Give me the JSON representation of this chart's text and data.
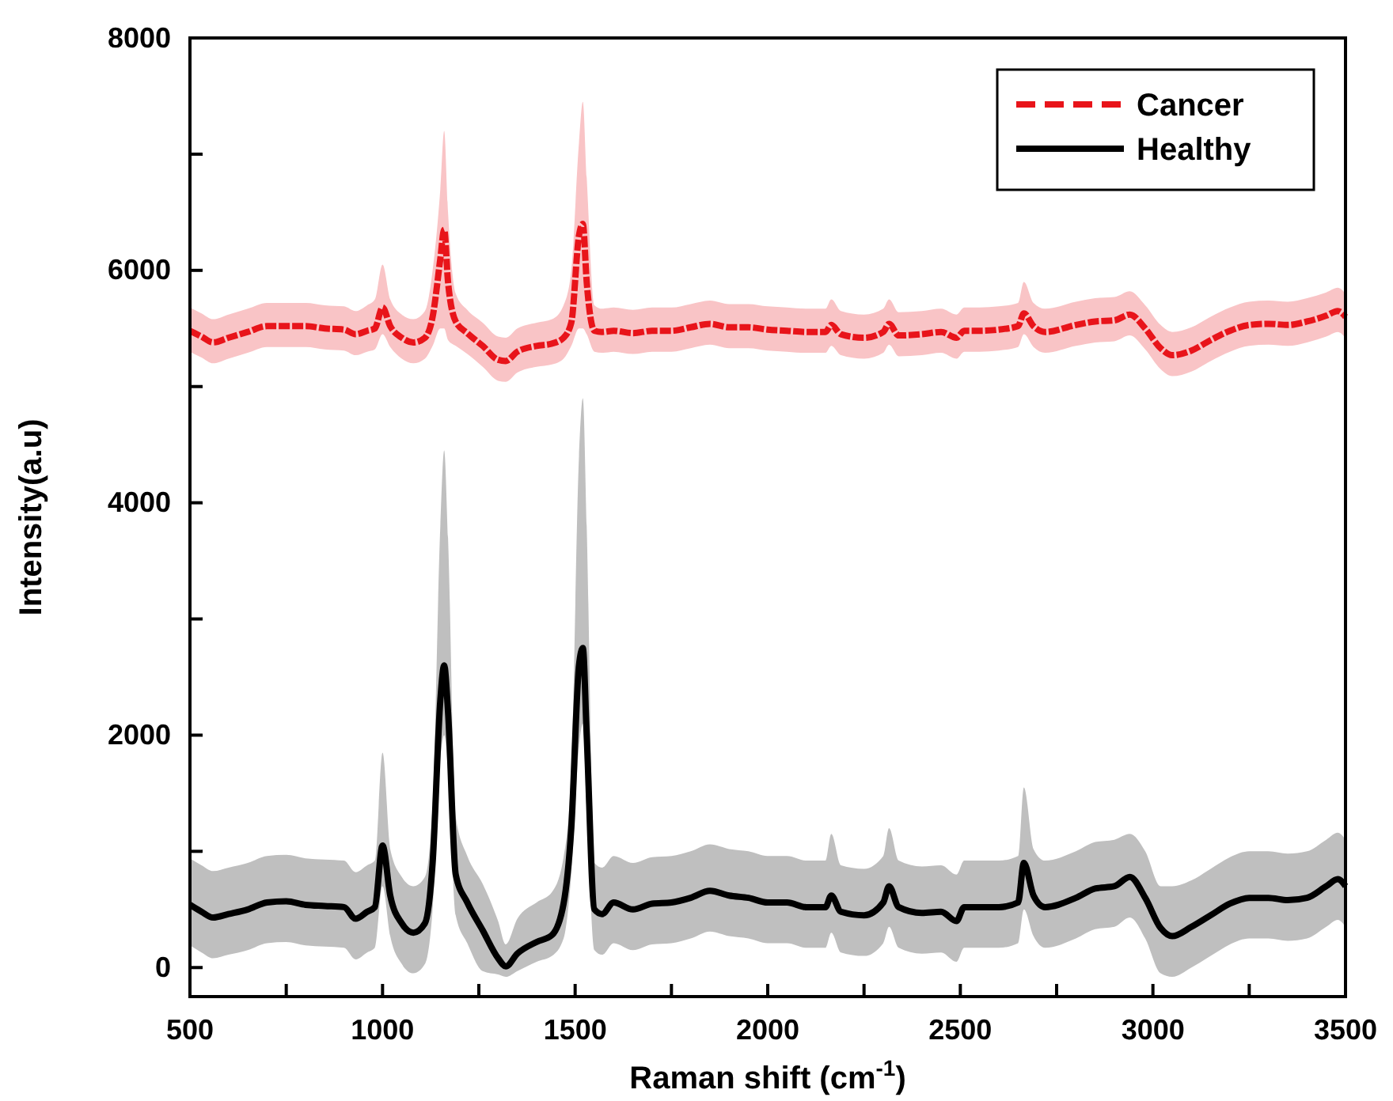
{
  "chart_data": {
    "type": "line",
    "xlabel": "Raman shift (cm$^{-1}$)",
    "ylabel": "Intensity(a.u)",
    "x": [
      500,
      530,
      560,
      600,
      650,
      700,
      750,
      800,
      850,
      900,
      930,
      960,
      980,
      1000,
      1020,
      1050,
      1080,
      1110,
      1130,
      1150,
      1160,
      1170,
      1190,
      1220,
      1260,
      1300,
      1320,
      1350,
      1400,
      1440,
      1470,
      1490,
      1510,
      1520,
      1530,
      1550,
      1570,
      1600,
      1650,
      1700,
      1750,
      1800,
      1850,
      1900,
      1950,
      2000,
      2050,
      2100,
      2150,
      2165,
      2190,
      2250,
      2300,
      2315,
      2340,
      2400,
      2450,
      2490,
      2510,
      2550,
      2600,
      2650,
      2665,
      2690,
      2720,
      2800,
      2850,
      2900,
      2940,
      2980,
      3020,
      3050,
      3100,
      3150,
      3200,
      3250,
      3300,
      3350,
      3400,
      3450,
      3480,
      3500
    ],
    "xlim": [
      500,
      3500
    ],
    "xticks": [
      500,
      {
        "value": 750,
        "label": null
      },
      1000,
      {
        "value": 1250,
        "label": null
      },
      1500,
      {
        "value": 1750,
        "label": null
      },
      2000,
      {
        "value": 2250,
        "label": null
      },
      2500,
      {
        "value": 2750,
        "label": null
      },
      3000,
      {
        "value": 3250,
        "label": null
      },
      3500
    ],
    "ylim": [
      -250,
      8000
    ],
    "yticks": [
      0,
      {
        "value": 1000,
        "label": null
      },
      2000,
      {
        "value": 3000,
        "label": null
      },
      4000,
      {
        "value": 5000,
        "label": null
      },
      6000,
      {
        "value": 7000,
        "label": null
      },
      8000
    ],
    "legend": "top right",
    "series": [
      {
        "name": "Cancer",
        "color": "#e8141a",
        "line_style": "dashed",
        "values": [
          5480,
          5430,
          5380,
          5420,
          5470,
          5520,
          5520,
          5520,
          5500,
          5490,
          5450,
          5480,
          5500,
          5680,
          5520,
          5420,
          5380,
          5420,
          5600,
          6100,
          6350,
          5900,
          5560,
          5460,
          5350,
          5230,
          5220,
          5300,
          5350,
          5370,
          5420,
          5550,
          6300,
          6400,
          5900,
          5480,
          5470,
          5480,
          5460,
          5480,
          5480,
          5510,
          5540,
          5510,
          5510,
          5490,
          5480,
          5470,
          5470,
          5530,
          5450,
          5420,
          5470,
          5540,
          5440,
          5450,
          5470,
          5420,
          5480,
          5480,
          5490,
          5520,
          5630,
          5520,
          5470,
          5530,
          5560,
          5570,
          5620,
          5500,
          5330,
          5270,
          5310,
          5400,
          5480,
          5530,
          5540,
          5530,
          5560,
          5610,
          5650,
          5600
        ],
        "upper": [
          5680,
          5630,
          5580,
          5620,
          5670,
          5720,
          5720,
          5720,
          5700,
          5690,
          5650,
          5700,
          5750,
          6050,
          5750,
          5620,
          5580,
          5650,
          6000,
          6700,
          7200,
          6500,
          5800,
          5660,
          5550,
          5430,
          5420,
          5500,
          5550,
          5580,
          5700,
          6000,
          7100,
          7450,
          6800,
          5700,
          5670,
          5680,
          5660,
          5680,
          5680,
          5710,
          5740,
          5710,
          5710,
          5690,
          5680,
          5670,
          5670,
          5750,
          5650,
          5620,
          5670,
          5750,
          5640,
          5650,
          5670,
          5620,
          5680,
          5680,
          5690,
          5720,
          5900,
          5720,
          5670,
          5730,
          5760,
          5770,
          5820,
          5700,
          5530,
          5470,
          5510,
          5600,
          5680,
          5730,
          5740,
          5730,
          5760,
          5810,
          5850,
          5800
        ],
        "lower": [
          5300,
          5250,
          5200,
          5240,
          5290,
          5340,
          5340,
          5340,
          5320,
          5310,
          5270,
          5300,
          5320,
          5450,
          5340,
          5240,
          5200,
          5240,
          5350,
          5500,
          5500,
          5400,
          5350,
          5280,
          5170,
          5050,
          5040,
          5120,
          5170,
          5190,
          5240,
          5350,
          5500,
          5500,
          5450,
          5300,
          5290,
          5300,
          5280,
          5300,
          5300,
          5330,
          5360,
          5330,
          5330,
          5310,
          5300,
          5290,
          5290,
          5350,
          5270,
          5240,
          5290,
          5360,
          5260,
          5270,
          5290,
          5240,
          5300,
          5300,
          5310,
          5340,
          5450,
          5340,
          5290,
          5350,
          5380,
          5390,
          5440,
          5320,
          5150,
          5090,
          5130,
          5220,
          5300,
          5350,
          5360,
          5350,
          5380,
          5430,
          5470,
          5420
        ]
      },
      {
        "name": "Healthy",
        "color": "#000000",
        "line_style": "solid",
        "values": [
          540,
          480,
          430,
          460,
          500,
          560,
          570,
          540,
          530,
          520,
          420,
          480,
          520,
          1050,
          620,
          380,
          300,
          380,
          900,
          2300,
          2600,
          2200,
          800,
          560,
          320,
          80,
          10,
          120,
          220,
          280,
          550,
          1200,
          2600,
          2750,
          2000,
          500,
          460,
          560,
          500,
          550,
          560,
          600,
          660,
          620,
          600,
          560,
          560,
          520,
          520,
          620,
          480,
          450,
          560,
          700,
          520,
          470,
          480,
          400,
          520,
          520,
          520,
          560,
          900,
          620,
          520,
          600,
          680,
          700,
          780,
          600,
          340,
          270,
          350,
          450,
          550,
          600,
          600,
          580,
          600,
          700,
          760,
          700
        ],
        "upper": [
          940,
          880,
          830,
          860,
          900,
          960,
          970,
          940,
          930,
          920,
          820,
          880,
          920,
          1850,
          1020,
          780,
          700,
          780,
          1400,
          3800,
          4450,
          3700,
          1300,
          960,
          720,
          400,
          200,
          420,
          560,
          650,
          950,
          1700,
          4400,
          4900,
          3800,
          900,
          860,
          960,
          900,
          950,
          960,
          1000,
          1060,
          1020,
          1000,
          960,
          960,
          920,
          920,
          1150,
          880,
          850,
          960,
          1200,
          920,
          870,
          880,
          800,
          920,
          920,
          920,
          960,
          1550,
          1020,
          920,
          1000,
          1080,
          1100,
          1150,
          1000,
          700,
          700,
          750,
          850,
          950,
          1000,
          1000,
          980,
          1000,
          1100,
          1160,
          1100
        ],
        "lower": [
          190,
          130,
          80,
          110,
          150,
          210,
          220,
          190,
          180,
          170,
          70,
          130,
          170,
          700,
          270,
          30,
          -50,
          30,
          500,
          1800,
          2000,
          1700,
          450,
          210,
          -30,
          -60,
          -80,
          -30,
          50,
          100,
          250,
          800,
          1900,
          2100,
          1400,
          150,
          110,
          210,
          150,
          200,
          210,
          250,
          310,
          270,
          250,
          210,
          210,
          170,
          170,
          300,
          130,
          100,
          210,
          350,
          170,
          120,
          130,
          50,
          170,
          170,
          170,
          210,
          500,
          270,
          170,
          250,
          330,
          350,
          430,
          250,
          -50,
          -80,
          0,
          100,
          200,
          250,
          250,
          230,
          250,
          350,
          410,
          350
        ]
      }
    ]
  }
}
